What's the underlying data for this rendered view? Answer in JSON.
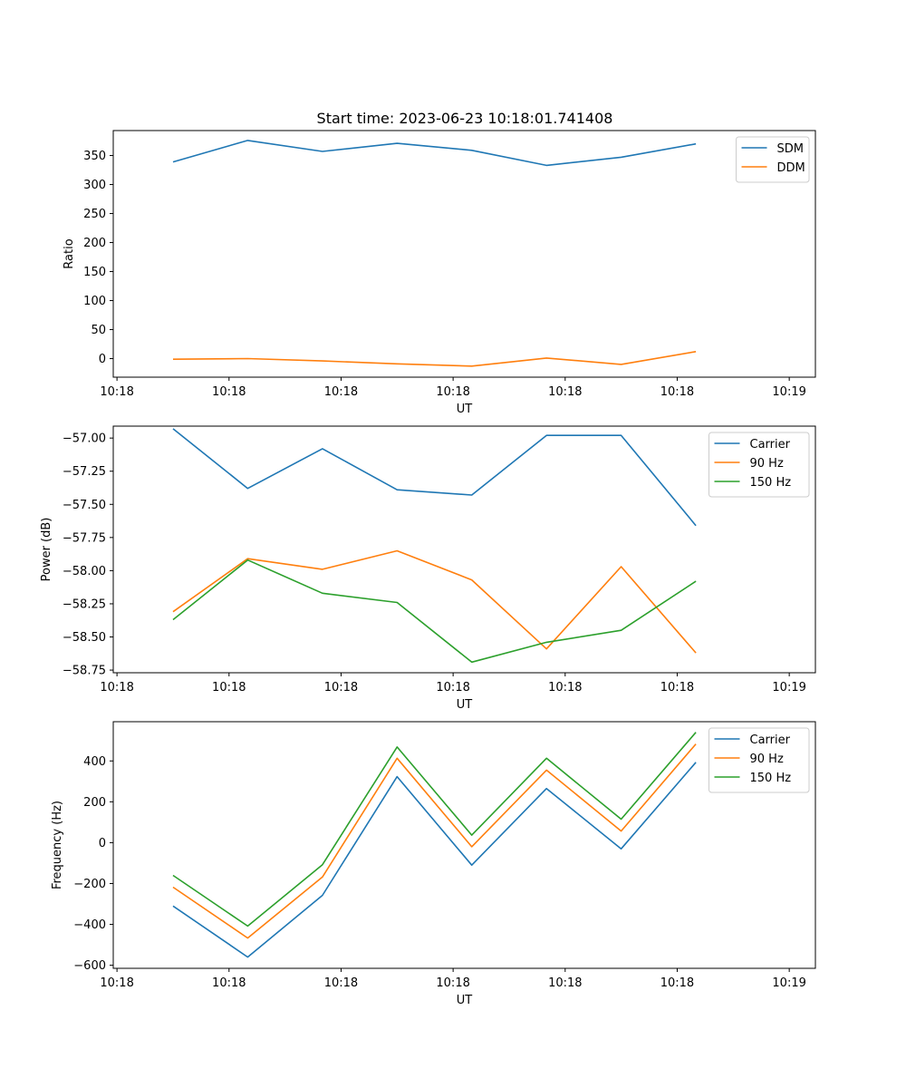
{
  "figure": {
    "title": "Start time: 2023-06-23 10:18:01.741408"
  },
  "chart_data": [
    {
      "type": "line",
      "title": "Start time: 2023-06-23 10:18:01.741408",
      "xlabel": "UT",
      "ylabel": "Ratio",
      "x": [
        1,
        2,
        3,
        4,
        5,
        6,
        7,
        8
      ],
      "xlim": [
        0.2,
        9.6
      ],
      "ylim": [
        -32,
        393
      ],
      "x_ticks": [
        0.25,
        1.75,
        3.25,
        4.75,
        6.25,
        7.75,
        9.25
      ],
      "x_tick_labels": [
        "10:18",
        "10:18",
        "10:18",
        "10:18",
        "10:18",
        "10:18",
        "10:19"
      ],
      "y_ticks": [
        0,
        50,
        100,
        150,
        200,
        250,
        300,
        350
      ],
      "y_tick_labels": [
        "0",
        "50",
        "100",
        "150",
        "200",
        "250",
        "300",
        "350"
      ],
      "series": [
        {
          "name": "SDM",
          "color": "#1f77b4",
          "values": [
            339,
            376,
            357,
            371,
            359,
            333,
            347,
            370
          ]
        },
        {
          "name": "DDM",
          "color": "#ff7f0e",
          "values": [
            -1,
            0,
            -4,
            -9,
            -13,
            1,
            -10,
            12
          ]
        }
      ],
      "legend": "top-right",
      "grid": false
    },
    {
      "type": "line",
      "xlabel": "UT",
      "ylabel": "Power (dB)",
      "x": [
        1,
        2,
        3,
        4,
        5,
        6,
        7,
        8
      ],
      "xlim": [
        0.2,
        9.6
      ],
      "ylim": [
        -58.77,
        -56.91
      ],
      "x_ticks": [
        0.25,
        1.75,
        3.25,
        4.75,
        6.25,
        7.75,
        9.25
      ],
      "x_tick_labels": [
        "10:18",
        "10:18",
        "10:18",
        "10:18",
        "10:18",
        "10:18",
        "10:19"
      ],
      "y_ticks": [
        -57.0,
        -57.25,
        -57.5,
        -57.75,
        -58.0,
        -58.25,
        -58.5,
        -58.75
      ],
      "y_tick_labels": [
        "−57.00",
        "−57.25",
        "−57.50",
        "−57.75",
        "−58.00",
        "−58.25",
        "−58.50",
        "−58.75"
      ],
      "series": [
        {
          "name": "Carrier",
          "color": "#1f77b4",
          "values": [
            -56.93,
            -57.38,
            -57.08,
            -57.39,
            -57.43,
            -56.98,
            -56.98,
            -57.66
          ]
        },
        {
          "name": "90 Hz",
          "color": "#ff7f0e",
          "values": [
            -58.31,
            -57.91,
            -57.99,
            -57.85,
            -58.07,
            -58.59,
            -57.97,
            -58.62
          ]
        },
        {
          "name": "150 Hz",
          "color": "#2ca02c",
          "values": [
            -58.37,
            -57.92,
            -58.17,
            -58.24,
            -58.69,
            -58.54,
            -58.45,
            -58.08
          ]
        }
      ],
      "legend": "top-right",
      "grid": false
    },
    {
      "type": "line",
      "xlabel": "UT",
      "ylabel": "Frequency (Hz)",
      "x": [
        1,
        2,
        3,
        4,
        5,
        6,
        7,
        8
      ],
      "xlim": [
        0.2,
        9.6
      ],
      "ylim": [
        -615,
        592
      ],
      "x_ticks": [
        0.25,
        1.75,
        3.25,
        4.75,
        6.25,
        7.75,
        9.25
      ],
      "x_tick_labels": [
        "10:18",
        "10:18",
        "10:18",
        "10:18",
        "10:18",
        "10:18",
        "10:19"
      ],
      "y_ticks": [
        -600,
        -400,
        -200,
        0,
        200,
        400
      ],
      "y_tick_labels": [
        "−600",
        "−400",
        "−200",
        "0",
        "200",
        "400"
      ],
      "series": [
        {
          "name": "Carrier",
          "color": "#1f77b4",
          "values": [
            -310,
            -560,
            -258,
            323,
            -110,
            265,
            -30,
            393
          ]
        },
        {
          "name": "90 Hz",
          "color": "#ff7f0e",
          "values": [
            -218,
            -467,
            -168,
            413,
            -20,
            355,
            57,
            483
          ]
        },
        {
          "name": "150 Hz",
          "color": "#2ca02c",
          "values": [
            -160,
            -408,
            -108,
            468,
            37,
            413,
            115,
            540
          ]
        }
      ],
      "legend": "top-right",
      "grid": false
    }
  ]
}
